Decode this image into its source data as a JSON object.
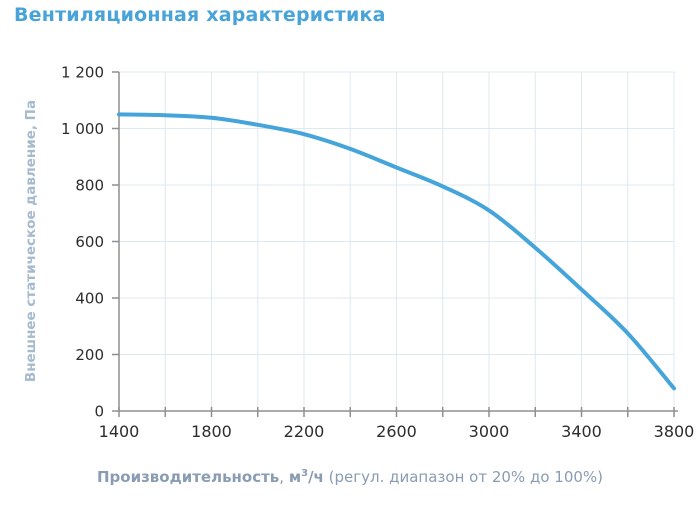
{
  "page": {
    "title": "Вентиляционная характеристика"
  },
  "axes": {
    "ylabel": "Внешнее статическое давление, Па",
    "xlabel_name": "Производительность",
    "xlabel_sep": ", ",
    "xlabel_unit_base": "м",
    "xlabel_unit_sup": "3",
    "xlabel_unit_rest": "/ч",
    "xlabel_note": "(регул. диапазон от 20% до 100%)"
  },
  "colors": {
    "title": "#47a3d8",
    "curve": "#45a5db",
    "grid": "#dde8f1",
    "axis": "#8f8f8f",
    "tick_text": "#2d2d2d",
    "ylabel_text": "#a6bacd",
    "xlabel_text": "#8a9cb2"
  },
  "chart_data": {
    "type": "line",
    "title": "Вентиляционная характеристика",
    "xlabel": "Производительность, м³/ч (регул. диапазон от 20% до 100%)",
    "ylabel": "Внешнее статическое давление, Па",
    "x": [
      1400,
      1600,
      1800,
      2000,
      2200,
      2400,
      2600,
      2800,
      3000,
      3200,
      3400,
      3600,
      3800
    ],
    "y": [
      1050,
      1047,
      1038,
      1013,
      980,
      928,
      862,
      795,
      710,
      578,
      430,
      275,
      80
    ],
    "xlim": [
      1400,
      3800
    ],
    "ylim": [
      0,
      1200
    ],
    "x_major_ticks": [
      1400,
      1800,
      2200,
      2600,
      3000,
      3400,
      3800
    ],
    "x_minor_ticks": [
      1600,
      2000,
      2400,
      2800,
      3200,
      3600
    ],
    "x_tick_labels": [
      "1400",
      "1800",
      "2200",
      "2600",
      "3000",
      "3400",
      "3800"
    ],
    "y_ticks": [
      0,
      200,
      400,
      600,
      800,
      1000,
      1200
    ],
    "y_tick_labels": [
      "0",
      "200",
      "400",
      "600",
      "800",
      "1 000",
      "1 200"
    ],
    "grid": true,
    "legend": false,
    "line_color": "#45a5db",
    "line_width": 4
  }
}
